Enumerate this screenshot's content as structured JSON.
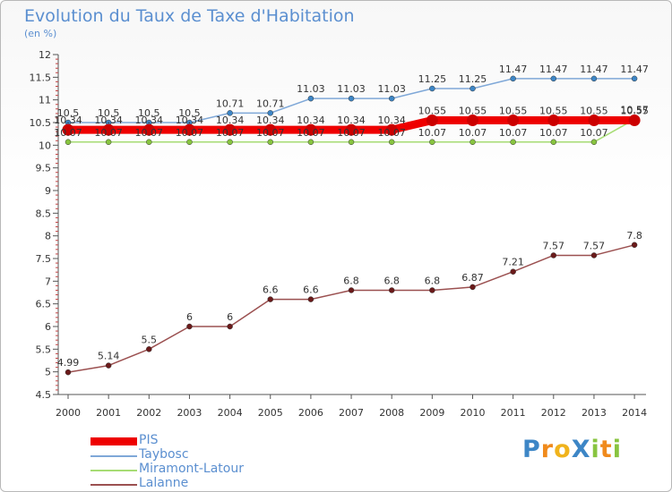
{
  "header": {
    "title": "Evolution du Taux de Taxe d'Habitation",
    "unit": "(en %)"
  },
  "logo": {
    "text": "Proxiti",
    "letters": [
      {
        "ch": "P",
        "color": "#3d86c6"
      },
      {
        "ch": "r",
        "color": "#f08a1c"
      },
      {
        "ch": "o",
        "color": "#f0b31c"
      },
      {
        "ch": "X",
        "color": "#3d86c6"
      },
      {
        "ch": "i",
        "color": "#88c440"
      },
      {
        "ch": "t",
        "color": "#f08a1c"
      },
      {
        "ch": "i",
        "color": "#88c440"
      }
    ]
  },
  "chart_data": {
    "type": "line",
    "title": "Evolution du Taux de Taxe d'Habitation",
    "ylabel": "(en %)",
    "xlabel": "",
    "x": [
      "2000",
      "2001",
      "2002",
      "2003",
      "2004",
      "2005",
      "2006",
      "2007",
      "2008",
      "2009",
      "2010",
      "2011",
      "2012",
      "2013",
      "2014"
    ],
    "ylim": [
      4.5,
      12
    ],
    "yticks": [
      "4.5",
      "5",
      "5.5",
      "6",
      "6.5",
      "7",
      "7.5",
      "8",
      "8.5",
      "9",
      "9.5",
      "10",
      "10.5",
      "11",
      "11.5",
      "12"
    ],
    "grid": false,
    "legend_position": "bottom-left",
    "series": [
      {
        "name": "PIS",
        "color": "#ee0000",
        "marker": "#cc0000",
        "values": [
          10.34,
          10.34,
          10.34,
          10.34,
          10.34,
          10.34,
          10.34,
          10.34,
          10.34,
          10.55,
          10.55,
          10.55,
          10.55,
          10.55,
          10.55
        ],
        "labels": [
          "10.34",
          "10.34",
          "10.34",
          "10.34",
          "10.34",
          "10.34",
          "10.34",
          "10.34",
          "10.34",
          "10.55",
          "10.55",
          "10.55",
          "10.55",
          "10.55",
          "10.55"
        ]
      },
      {
        "name": "Taybosc",
        "color": "#7fa8d8",
        "marker": "#3d86c6",
        "values": [
          10.5,
          10.5,
          10.5,
          10.5,
          10.71,
          10.71,
          11.03,
          11.03,
          11.03,
          11.25,
          11.25,
          11.47,
          11.47,
          11.47,
          11.47
        ],
        "labels": [
          "10.5",
          "10.5",
          "10.5",
          "10.5",
          "10.71",
          "10.71",
          "11.03",
          "11.03",
          "11.03",
          "11.25",
          "11.25",
          "11.47",
          "11.47",
          "11.47",
          "11.47"
        ]
      },
      {
        "name": "Miramont-Latour",
        "color": "#a6dc74",
        "marker": "#88c440",
        "values": [
          10.07,
          10.07,
          10.07,
          10.07,
          10.07,
          10.07,
          10.07,
          10.07,
          10.07,
          10.07,
          10.07,
          10.07,
          10.07,
          10.07,
          10.57
        ],
        "labels": [
          "10.07",
          "10.07",
          "10.07",
          "10.07",
          "10.07",
          "10.07",
          "10.07",
          "10.07",
          "10.07",
          "10.07",
          "10.07",
          "10.07",
          "10.07",
          "10.07",
          "10.57"
        ]
      },
      {
        "name": "Lalanne",
        "color": "#9b5050",
        "marker": "#6b1a1a",
        "values": [
          4.99,
          5.14,
          5.5,
          6,
          6,
          6.6,
          6.6,
          6.8,
          6.8,
          6.8,
          6.87,
          7.21,
          7.57,
          7.57,
          7.8
        ],
        "labels": [
          "4.99",
          "5.14",
          "5.5",
          "6",
          "6",
          "6.6",
          "6.6",
          "6.8",
          "6.8",
          "6.8",
          "6.87",
          "7.21",
          "7.57",
          "7.57",
          "7.8"
        ]
      }
    ]
  }
}
